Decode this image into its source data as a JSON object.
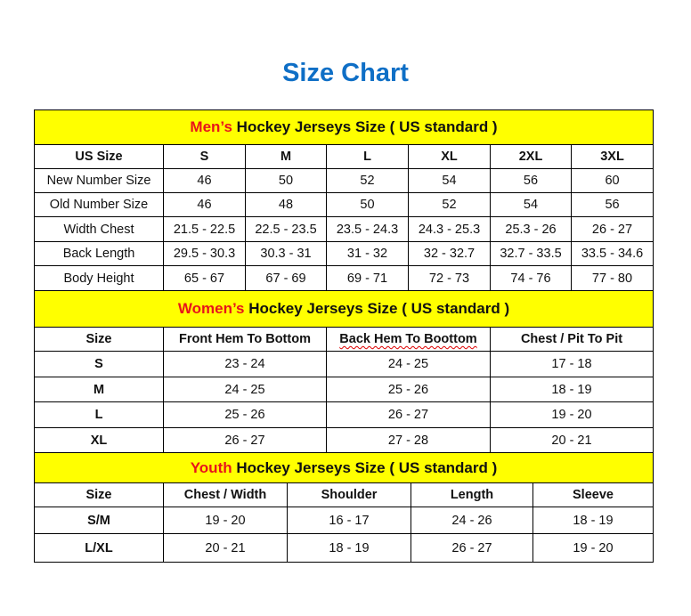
{
  "title": "Size Chart",
  "colors": {
    "title": "#0f6fc6",
    "banner": "#ffff00",
    "highlight": "#e8141b"
  },
  "men": {
    "banner_highlight": "Men’s",
    "banner_rest": " Hockey Jerseys Size ( US standard )",
    "headers": [
      "US Size",
      "S",
      "M",
      "L",
      "XL",
      "2XL",
      "3XL"
    ],
    "rows": [
      [
        "New Number Size",
        "46",
        "50",
        "52",
        "54",
        "56",
        "60"
      ],
      [
        "Old Number Size",
        "46",
        "48",
        "50",
        "52",
        "54",
        "56"
      ],
      [
        "Width Chest",
        "21.5 - 22.5",
        "22.5 - 23.5",
        "23.5 - 24.3",
        "24.3 - 25.3",
        "25.3 - 26",
        "26 - 27"
      ],
      [
        "Back Length",
        "29.5 - 30.3",
        "30.3 - 31",
        "31 - 32",
        "32 - 32.7",
        "32.7 - 33.5",
        "33.5 - 34.6"
      ],
      [
        "Body Height",
        "65 - 67",
        "67 - 69",
        "69 - 71",
        "72 - 73",
        "74 - 76",
        "77 - 80"
      ]
    ]
  },
  "women": {
    "banner_highlight": "Women’s",
    "banner_rest": " Hockey Jerseys Size ( US standard )",
    "headers": [
      "Size",
      "Front Hem To Bottom",
      "Back Hem To Boottom",
      "Chest / Pit To Pit"
    ],
    "rows": [
      [
        "S",
        "23 - 24",
        "24 - 25",
        "17 - 18"
      ],
      [
        "M",
        "24 - 25",
        "25 - 26",
        "18 - 19"
      ],
      [
        "L",
        "25 - 26",
        "26 - 27",
        "19 - 20"
      ],
      [
        "XL",
        "26 - 27",
        "27 - 28",
        "20 - 21"
      ]
    ]
  },
  "youth": {
    "banner_highlight": "Youth",
    "banner_rest": " Hockey Jerseys Size ( US standard )",
    "headers": [
      "Size",
      "Chest / Width",
      "Shoulder",
      "Length",
      "Sleeve"
    ],
    "rows": [
      [
        "S/M",
        "19 - 20",
        "16 - 17",
        "24 - 26",
        "18 - 19"
      ],
      [
        "L/XL",
        "20 - 21",
        "18 - 19",
        "26 - 27",
        "19 - 20"
      ]
    ]
  }
}
